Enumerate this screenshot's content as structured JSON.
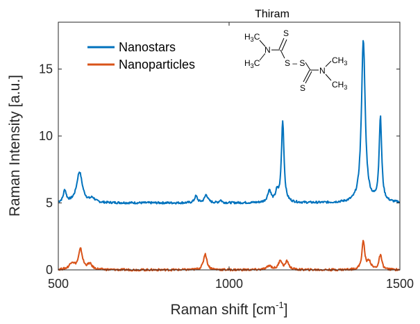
{
  "chart_data": {
    "type": "line",
    "xlabel_main": "Raman shift [cm",
    "xlabel_sup": "-1",
    "xlabel_end": "]",
    "ylabel": "Raman Intensity [a.u.]",
    "xlim": [
      500,
      1500
    ],
    "ylim": [
      0,
      18.5
    ],
    "xticks": [
      {
        "value": 500,
        "label": "500"
      },
      {
        "value": 1000,
        "label": "1000"
      },
      {
        "value": 1500,
        "label": "1500"
      }
    ],
    "yticks": [
      {
        "value": 0,
        "label": "0"
      },
      {
        "value": 5,
        "label": "5"
      },
      {
        "value": 10,
        "label": "10"
      },
      {
        "value": 15,
        "label": "15"
      }
    ],
    "grid": false,
    "legend_position": "top-left",
    "series": [
      {
        "name": "Nanostars",
        "color": "#0072BD",
        "baseline": 5.0,
        "peaks": [
          [
            519,
            0.9,
            5
          ],
          [
            562,
            2.3,
            10
          ],
          [
            600,
            0.3,
            8
          ],
          [
            903,
            0.5,
            5
          ],
          [
            933,
            0.6,
            6
          ],
          [
            975,
            0.2,
            4
          ],
          [
            1118,
            0.9,
            6
          ],
          [
            1140,
            0.7,
            5
          ],
          [
            1157,
            6.1,
            4.5
          ],
          [
            1393,
            12.2,
            6.5
          ],
          [
            1443,
            6.3,
            4.5
          ]
        ]
      },
      {
        "name": "Nanoparticles",
        "color": "#D95319",
        "baseline": 0.0,
        "peaks": [
          [
            540,
            0.5,
            9
          ],
          [
            565,
            1.5,
            7
          ],
          [
            592,
            0.4,
            8
          ],
          [
            930,
            1.2,
            6
          ],
          [
            1118,
            0.3,
            8
          ],
          [
            1150,
            0.7,
            6
          ],
          [
            1170,
            0.6,
            6
          ],
          [
            1393,
            2.1,
            5
          ],
          [
            1410,
            0.6,
            6
          ],
          [
            1443,
            1.1,
            5
          ]
        ]
      }
    ],
    "annotation": {
      "title": "Thiram",
      "atoms": {
        "h3c": "H",
        "three": "3",
        "c": "C",
        "n": "N",
        "s": "S",
        "ss": "S – S",
        "ch": "CH",
        "sub3": "3"
      }
    }
  }
}
